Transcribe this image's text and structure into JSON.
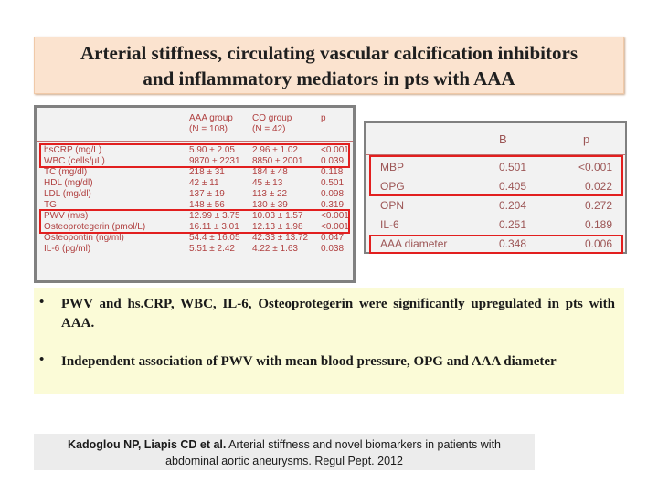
{
  "title": {
    "line1": "Arterial stiffness, circulating vascular calcification inhibitors",
    "line2": "and inflammatory mediators in pts with AAA"
  },
  "table1": {
    "headers": [
      {
        "line1": "",
        "line2": ""
      },
      {
        "line1": "AAA group",
        "line2": "(N = 108)"
      },
      {
        "line1": "CO group",
        "line2": "(N = 42)"
      },
      {
        "line1": "p",
        "line2": ""
      }
    ],
    "rows": [
      [
        "hsCRP (mg/L)",
        "5.90 ± 2.05",
        "2.96 ± 1.02",
        "<0.001"
      ],
      [
        "WBC (cells/μL)",
        "9870 ± 2231",
        "8850 ± 2001",
        "0.039"
      ],
      [
        "TC (mg/dl)",
        "218 ± 31",
        "184 ± 48",
        "0.118"
      ],
      [
        "HDL (mg/dl)",
        "42 ± 11",
        "45 ± 13",
        "0.501"
      ],
      [
        "LDL (mg/dl)",
        "137 ± 19",
        "113 ± 22",
        "0.098"
      ],
      [
        "TG",
        "148 ± 56",
        "130 ± 39",
        "0.319"
      ],
      [
        "PWV (m/s)",
        "12.99 ± 3.75",
        "10.03 ± 1.57",
        "<0.001"
      ],
      [
        "Osteoprotegerin (pmol/L)",
        "16.11 ± 3.01",
        "12.13 ± 1.98",
        "<0.001"
      ],
      [
        "Osteopontin (ng/ml)",
        "54.4 ± 16.05",
        "42.33 ± 13.72",
        "0.047"
      ],
      [
        "IL-6 (pg/ml)",
        "5.51 ± 2.42",
        "4.22 ± 1.63",
        "0.038"
      ]
    ]
  },
  "table2": {
    "headers": [
      "",
      "B",
      "p"
    ],
    "rows": [
      [
        "MBP",
        "0.501",
        "<0.001"
      ],
      [
        "OPG",
        "0.405",
        "0.022"
      ],
      [
        "OPN",
        "0.204",
        "0.272"
      ],
      [
        "IL-6",
        "0.251",
        "0.189"
      ],
      [
        "AAA diameter",
        "0.348",
        "0.006"
      ]
    ]
  },
  "bullets": [
    {
      "dot": "•",
      "text": "PWV and hs.CRP, WBC, IL-6, Osteoprotegerin were significantly upregulated in pts with AAA."
    },
    {
      "dot": "•",
      "text": "Independent association of PWV with mean blood pressure, OPG and AAA diameter"
    }
  ],
  "citation": {
    "authors": "Kadoglou NP, Liapis CD et al.",
    "text1": " Arterial stiffness and novel biomarkers in patients with",
    "line2": "abdominal aortic aneurysms. Regul Pept. 2012"
  },
  "colors": {
    "highlight": "#e21f1f",
    "table_text": "#b04040",
    "title_bg": "#fbe3cf",
    "bullet_bg": "#fbfbd7"
  }
}
